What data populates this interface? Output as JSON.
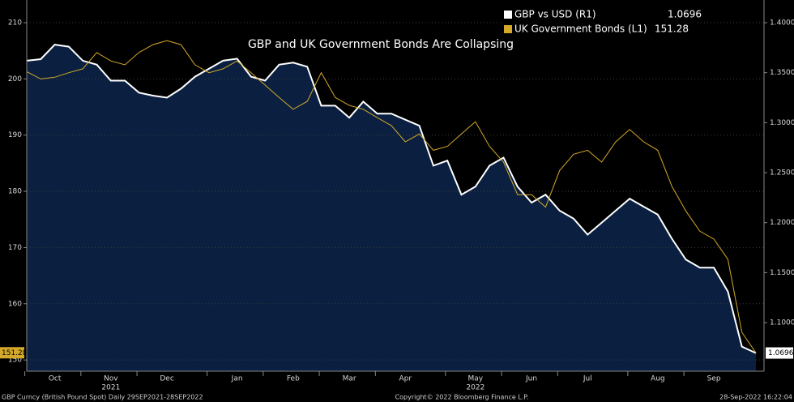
{
  "chart_data": {
    "type": "line",
    "title": "GBP and UK Government Bonds Are Collapsing",
    "categories": [
      null,
      null,
      "Oct",
      null,
      null,
      null,
      "Nov",
      null,
      null,
      null,
      "Dec",
      null,
      null,
      null,
      null,
      "Jan",
      null,
      null,
      null,
      "Feb",
      null,
      null,
      null,
      "Mar",
      null,
      null,
      null,
      "Apr",
      null,
      null,
      null,
      null,
      "May",
      null,
      null,
      null,
      "Jun",
      null,
      null,
      null,
      "Jul",
      null,
      null,
      null,
      null,
      "Aug",
      null,
      null,
      null,
      "Sep",
      null,
      null,
      null
    ],
    "year_labels": [
      {
        "label": "2021",
        "at": "Nov"
      },
      {
        "label": "2022",
        "at": "May"
      }
    ],
    "series": [
      {
        "name": "GBP vs USD (R1)",
        "color": "#ffffff",
        "fill": "#0b2040",
        "axis": "y2",
        "values": [
          1.362,
          1.3635,
          1.378,
          1.376,
          1.362,
          1.358,
          1.342,
          1.342,
          1.33,
          1.327,
          1.325,
          1.334,
          1.346,
          1.354,
          1.362,
          1.364,
          1.346,
          1.342,
          1.358,
          1.36,
          1.356,
          1.317,
          1.317,
          1.305,
          1.321,
          1.309,
          1.309,
          1.303,
          1.297,
          1.257,
          1.262,
          1.228,
          1.236,
          1.257,
          1.265,
          1.236,
          1.22,
          1.228,
          1.212,
          1.204,
          1.188,
          1.2,
          1.212,
          1.224,
          1.216,
          1.208,
          1.184,
          1.163,
          1.155,
          1.155,
          1.131,
          1.076,
          1.0696
        ]
      },
      {
        "name": "UK Government Bonds (L1)",
        "color": "#d4a92a",
        "axis": "y",
        "values": [
          201.3,
          200.0,
          200.3,
          201.1,
          201.8,
          204.7,
          203.2,
          202.5,
          204.7,
          206.1,
          206.8,
          206.1,
          202.5,
          201.1,
          201.8,
          203.2,
          201.1,
          198.9,
          196.7,
          194.6,
          196.0,
          201.1,
          196.7,
          195.3,
          194.6,
          193.1,
          191.7,
          188.8,
          190.2,
          187.3,
          188.0,
          190.2,
          192.4,
          188.0,
          185.2,
          179.4,
          179.4,
          177.2,
          183.7,
          186.6,
          187.3,
          185.2,
          188.8,
          191.0,
          188.8,
          187.3,
          180.9,
          176.5,
          172.9,
          171.5,
          167.9,
          154.9,
          151.28
        ]
      }
    ],
    "ylim": [
      148,
      214.04
    ],
    "yticks": [
      150,
      160,
      170,
      180,
      190,
      200,
      210
    ],
    "y2lim": [
      1.0514,
      1.4227
    ],
    "y2ticks": [
      {
        "value": 1.1,
        "label": "1.1000"
      },
      {
        "value": 1.15,
        "label": "1.1500"
      },
      {
        "value": 1.2,
        "label": "1.2000"
      },
      {
        "value": 1.25,
        "label": "1.2500"
      },
      {
        "value": 1.3,
        "label": "1.3000"
      },
      {
        "value": 1.35,
        "label": "1.3500"
      },
      {
        "value": 1.4,
        "label": "1.4000"
      }
    ],
    "grid": true,
    "footer": {
      "left": "GBP Curncy (British Pound Spot)  Daily 29SEP2021-28SEP2022",
      "center": "Copyright© 2022 Bloomberg Finance L.P.",
      "right": "28-Sep-2022 16:22:04"
    }
  }
}
